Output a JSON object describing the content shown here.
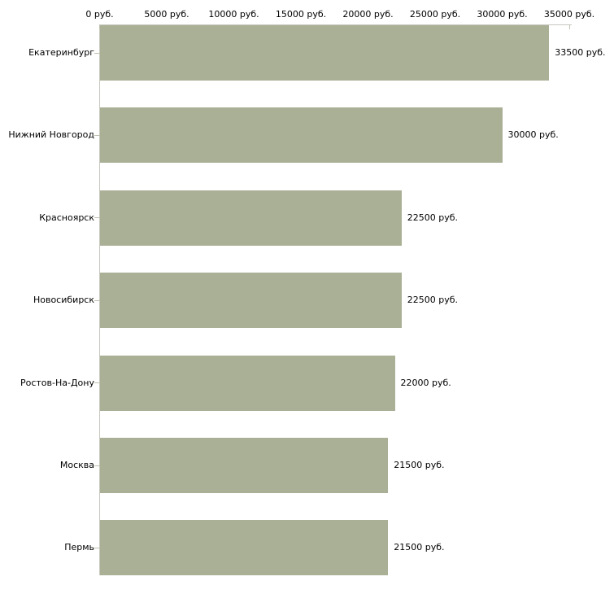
{
  "chart_data": {
    "type": "bar",
    "orientation": "horizontal",
    "title": "",
    "xlabel": "",
    "ylabel": "",
    "categories": [
      "Екатеринбург",
      "Нижний Новгород",
      "Красноярск",
      "Новосибирск",
      "Ростов-На-Дону",
      "Москва",
      "Пермь"
    ],
    "values": [
      33500,
      30000,
      22500,
      22500,
      22000,
      21500,
      21500
    ],
    "value_labels": [
      "33500 руб.",
      "30000 руб.",
      "22500 руб.",
      "22500 руб.",
      "22000 руб.",
      "21500 руб.",
      "21500 руб."
    ],
    "x_ticks": [
      0,
      5000,
      10000,
      15000,
      20000,
      25000,
      30000,
      35000
    ],
    "x_tick_labels": [
      "0 руб.",
      "5000 руб.",
      "10000 руб.",
      "15000 руб.",
      "20000 руб.",
      "25000 руб.",
      "30000 руб.",
      "35000 руб."
    ],
    "xlim": [
      0,
      35000
    ],
    "grid": false,
    "legend": false,
    "colors": {
      "bar_fill": "#aab096",
      "axis_line": "#c9c8c0",
      "tick_mark": "#c2c1b2",
      "text": "#000000",
      "background": "#ffffff"
    }
  }
}
